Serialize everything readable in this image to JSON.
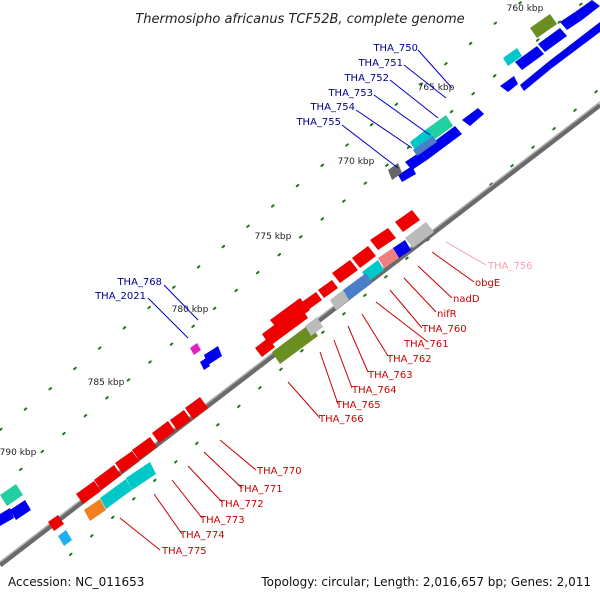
{
  "title": "Thermosipho africanus TCF52B, complete genome",
  "footer": {
    "accession": "Accession: NC_011653",
    "summary": "Topology: circular; Length: 2,016,657 bp; Genes: 2,011"
  },
  "ticks": [
    "760 kbp",
    "765 kbp",
    "770 kbp",
    "775 kbp",
    "780 kbp",
    "785 kbp",
    "790 kbp"
  ],
  "labels": {
    "forward": [
      "THA_750",
      "THA_751",
      "THA_752",
      "THA_753",
      "THA_754",
      "THA_755",
      "THA_768",
      "THA_2021"
    ],
    "reverse": [
      "THA_756",
      "obgE",
      "nadD",
      "nifR",
      "THA_760",
      "THA_761",
      "THA_762",
      "THA_763",
      "THA_764",
      "THA_765",
      "THA_766",
      "THA_770",
      "THA_771",
      "THA_772",
      "THA_773",
      "THA_774",
      "THA_775"
    ]
  },
  "colors": {
    "forward_gene": "#0000ee",
    "reverse_gene": "#ee0000",
    "forward_label": "#00008b",
    "reverse_label": "#cc0000",
    "faded_label": "#f4a0b0",
    "backbone": "#707070",
    "tick": "#1a7a1a",
    "cog_olive": "#6b8e23",
    "cog_cyan": "#00c8c8",
    "cog_teal": "#20d0a0",
    "cog_gray": "#bbbbbb",
    "cog_orange": "#f08020",
    "cog_steel": "#4a7ec8",
    "cog_pink": "#e060c0"
  }
}
